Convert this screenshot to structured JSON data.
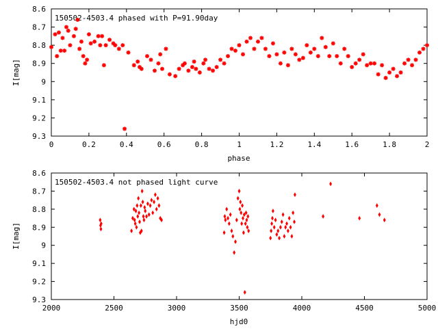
{
  "colors": {
    "points": "#ff0000",
    "axes": "#000000",
    "background": "#ffffff"
  },
  "chart_data": [
    {
      "type": "scatter",
      "title": "150502-4503.4 phased with P=91.90day",
      "xlabel": "phase",
      "ylabel": "I[mag]",
      "xlim": [
        0,
        2
      ],
      "ylim": [
        8.6,
        9.3
      ],
      "y_inverted": true,
      "grid": false,
      "xticks": [
        "0",
        "0.2",
        "0.4",
        "0.6",
        "0.8",
        "1",
        "1.2",
        "1.4",
        "1.6",
        "1.8",
        "2"
      ],
      "yticks": [
        "8.6",
        "8.7",
        "8.8",
        "8.9",
        "9",
        "9.1",
        "9.2",
        "9.3"
      ],
      "marker": "star",
      "x": [
        0.0,
        0.02,
        0.03,
        0.04,
        0.05,
        0.06,
        0.07,
        0.08,
        0.09,
        0.1,
        0.12,
        0.13,
        0.14,
        0.15,
        0.16,
        0.17,
        0.18,
        0.19,
        0.2,
        0.21,
        0.23,
        0.25,
        0.26,
        0.27,
        0.28,
        0.29,
        0.31,
        0.33,
        0.34,
        0.36,
        0.38,
        0.39,
        0.41,
        0.44,
        0.46,
        0.47,
        0.48,
        0.51,
        0.53,
        0.55,
        0.57,
        0.58,
        0.59,
        0.61,
        0.63,
        0.66,
        0.68,
        0.7,
        0.71,
        0.73,
        0.75,
        0.76,
        0.77,
        0.79,
        0.81,
        0.82,
        0.84,
        0.86,
        0.88,
        0.9,
        0.92,
        0.94,
        0.96,
        0.98,
        1.0,
        1.02,
        1.04,
        1.06,
        1.08,
        1.1,
        1.12,
        1.14,
        1.16,
        1.18,
        1.2,
        1.22,
        1.24,
        1.26,
        1.28,
        1.3,
        1.32,
        1.34,
        1.36,
        1.38,
        1.4,
        1.42,
        1.44,
        1.46,
        1.48,
        1.5,
        1.52,
        1.54,
        1.56,
        1.58,
        1.6,
        1.62,
        1.64,
        1.66,
        1.68,
        1.7,
        1.72,
        1.74,
        1.76,
        1.78,
        1.8,
        1.82,
        1.84,
        1.86,
        1.88,
        1.9,
        1.92,
        1.94,
        1.96,
        1.98,
        2.0
      ],
      "y": [
        8.81,
        8.74,
        8.86,
        8.73,
        8.83,
        8.76,
        8.83,
        8.7,
        8.72,
        8.8,
        8.75,
        8.71,
        8.66,
        8.82,
        8.78,
        8.86,
        8.9,
        8.88,
        8.74,
        8.79,
        8.78,
        8.75,
        8.8,
        8.75,
        8.91,
        8.8,
        8.77,
        8.79,
        8.8,
        8.82,
        8.8,
        9.26,
        8.84,
        8.91,
        8.89,
        8.92,
        8.93,
        8.86,
        8.88,
        8.94,
        8.9,
        8.85,
        8.93,
        8.82,
        8.96,
        8.97,
        8.93,
        8.91,
        8.9,
        8.94,
        8.92,
        8.89,
        8.93,
        8.95,
        8.9,
        8.88,
        8.93,
        8.94,
        8.92,
        8.88,
        8.9,
        8.86,
        8.82,
        8.83,
        8.8,
        8.85,
        8.78,
        8.76,
        8.82,
        8.78,
        8.76,
        8.82,
        8.86,
        8.79,
        8.85,
        8.9,
        8.84,
        8.91,
        8.82,
        8.85,
        8.88,
        8.87,
        8.8,
        8.84,
        8.82,
        8.86,
        8.76,
        8.81,
        8.86,
        8.79,
        8.86,
        8.9,
        8.82,
        8.86,
        8.92,
        8.9,
        8.88,
        8.85,
        8.91,
        8.9,
        8.9,
        8.96,
        8.91,
        8.98,
        8.95,
        8.93,
        8.97,
        8.95,
        8.9,
        8.88,
        8.91,
        8.88,
        8.84,
        8.82,
        8.8
      ]
    },
    {
      "type": "scatter",
      "title": "150502-4503.4 not phased light curve",
      "xlabel": "hjd0",
      "ylabel": "I[mag]",
      "xlim": [
        2000,
        5000
      ],
      "ylim": [
        8.6,
        9.3
      ],
      "y_inverted": true,
      "grid": false,
      "xticks": [
        "2000",
        "2500",
        "3000",
        "3500",
        "4000",
        "4500",
        "5000"
      ],
      "yticks": [
        "8.6",
        "8.7",
        "8.8",
        "8.9",
        "9",
        "9.1",
        "9.2",
        "9.3"
      ],
      "marker": "diamond",
      "x": [
        2390,
        2393,
        2396,
        2398,
        2640,
        2650,
        2660,
        2665,
        2670,
        2675,
        2680,
        2685,
        2690,
        2695,
        2700,
        2705,
        2710,
        2715,
        2720,
        2725,
        2730,
        2735,
        2740,
        2745,
        2750,
        2760,
        2770,
        2780,
        2790,
        2800,
        2810,
        2820,
        2830,
        2840,
        2850,
        2860,
        2870,
        2880,
        3380,
        3385,
        3390,
        3400,
        3410,
        3420,
        3430,
        3440,
        3450,
        3460,
        3470,
        3480,
        3490,
        3500,
        3505,
        3510,
        3515,
        3520,
        3525,
        3530,
        3535,
        3540,
        3545,
        3550,
        3555,
        3560,
        3565,
        3570,
        3575,
        3750,
        3755,
        3760,
        3765,
        3770,
        3780,
        3790,
        3800,
        3810,
        3820,
        3830,
        3840,
        3850,
        3860,
        3870,
        3880,
        3890,
        3900,
        3910,
        3920,
        3930,
        3940,
        3945,
        4170,
        4230,
        4460,
        4600,
        4620,
        4660
      ],
      "y": [
        8.86,
        8.89,
        8.91,
        8.88,
        8.92,
        8.85,
        8.8,
        8.86,
        8.88,
        8.81,
        8.9,
        8.78,
        8.84,
        8.74,
        8.82,
        8.87,
        8.93,
        8.78,
        8.92,
        8.7,
        8.76,
        8.84,
        8.86,
        8.79,
        8.81,
        8.84,
        8.77,
        8.83,
        8.78,
        8.75,
        8.82,
        8.76,
        8.72,
        8.8,
        8.74,
        8.78,
        8.85,
        8.86,
        8.93,
        8.84,
        8.86,
        8.8,
        8.85,
        8.88,
        8.83,
        8.92,
        8.95,
        9.04,
        8.98,
        8.86,
        8.74,
        8.7,
        8.8,
        8.76,
        8.82,
        8.88,
        8.78,
        8.85,
        8.93,
        8.83,
        9.26,
        8.88,
        8.82,
        8.86,
        8.9,
        8.84,
        8.92,
        8.96,
        8.92,
        8.88,
        8.85,
        8.81,
        8.9,
        8.86,
        8.94,
        8.92,
        8.96,
        8.9,
        8.87,
        8.83,
        8.95,
        8.9,
        8.88,
        8.92,
        8.85,
        8.9,
        8.95,
        8.82,
        8.87,
        8.72,
        8.84,
        8.66,
        8.85,
        8.78,
        8.83,
        8.86
      ]
    }
  ]
}
